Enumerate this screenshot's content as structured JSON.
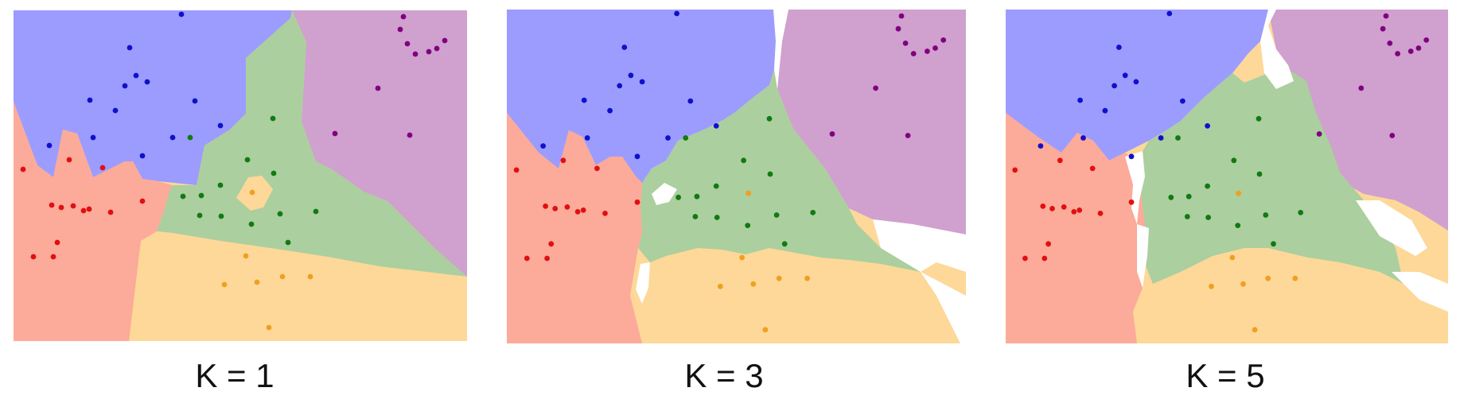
{
  "captions": [
    "K = 1",
    "K = 3",
    "K = 5"
  ],
  "colors": {
    "region_blue": "#9c9cff",
    "region_purple": "#d0a0cf",
    "region_green": "#abcf9e",
    "region_orange": "#fdd899",
    "region_red": "#fcaa99",
    "point_blue": "#1010cc",
    "point_purple": "#800080",
    "point_green": "#127a12",
    "point_orange": "#f0a020",
    "point_red": "#e01010"
  }
}
